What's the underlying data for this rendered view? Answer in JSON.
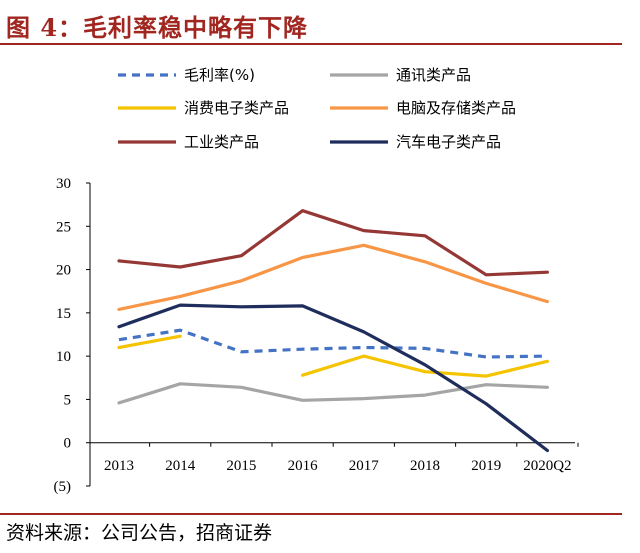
{
  "title": "图 4：毛利率稳中略有下降",
  "source": "资料来源：公司公告，招商证券",
  "chart_data": {
    "type": "line",
    "categories": [
      "2013",
      "2014",
      "2015",
      "2016",
      "2017",
      "2018",
      "2019",
      "2020Q2"
    ],
    "ylim": [
      -5,
      30
    ],
    "y_ticks": [
      30,
      25,
      20,
      15,
      10,
      5,
      0,
      -5
    ],
    "y_tick_labels": [
      "30",
      "25",
      "20",
      "15",
      "10",
      "5",
      "0",
      "(5)"
    ],
    "legend_position": "top, two columns",
    "grid": false,
    "series": [
      {
        "name": "毛利率(%)",
        "color": "#4472c4",
        "dashed": true,
        "values": [
          11.9,
          13.0,
          10.5,
          10.8,
          11.0,
          10.9,
          9.9,
          10.0
        ]
      },
      {
        "name": "通讯类产品",
        "color": "#a5a5a5",
        "dashed": false,
        "values": [
          4.6,
          6.8,
          6.4,
          4.9,
          5.1,
          5.5,
          6.7,
          6.4
        ]
      },
      {
        "name": "消费电子类产品",
        "color": "#f5c400",
        "dashed": false,
        "segments": [
          {
            "x": [
              "2013",
              "2014"
            ],
            "values": [
              11.0,
              12.3
            ]
          },
          {
            "x": [
              "2016",
              "2017",
              "2018",
              "2019",
              "2020Q2"
            ],
            "values": [
              7.8,
              10.0,
              8.2,
              7.7,
              9.4
            ]
          }
        ]
      },
      {
        "name": "电脑及存储类产品",
        "color": "#f79646",
        "dashed": false,
        "values": [
          15.4,
          16.9,
          18.7,
          21.4,
          22.8,
          20.9,
          18.4,
          16.3
        ]
      },
      {
        "name": "工业类产品",
        "color": "#953735",
        "dashed": false,
        "values": [
          21.0,
          20.3,
          21.6,
          26.8,
          24.5,
          23.9,
          19.4,
          19.7
        ]
      },
      {
        "name": "汽车电子类产品",
        "color": "#1f2d5c",
        "dashed": false,
        "values": [
          13.4,
          15.9,
          15.7,
          15.8,
          12.8,
          9.0,
          4.5,
          -0.9
        ]
      }
    ]
  }
}
